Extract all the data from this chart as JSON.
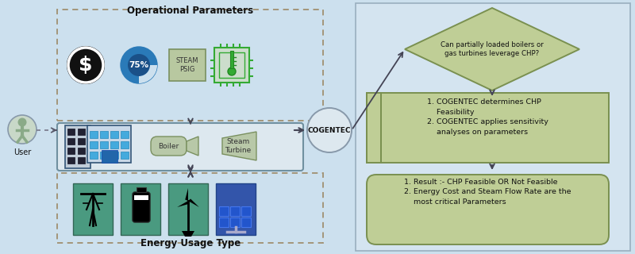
{
  "bg_color": "#cce0ee",
  "op_params_label": "Operational Parameters",
  "energy_usage_label": "Energy Usage Type",
  "user_label": "User",
  "cogentec_label": "COGENTEC",
  "diamond_text": "Can partially loaded boilers or\ngas turbines leverage CHP?",
  "box1_text": "1. COGENTEC determines CHP\n    Feasibility\n2. COGENTEC applies sensitivity\n    analyses on parameters",
  "box2_text": "1. Result :- CHP Feasible OR Not Feasible\n2. Energy Cost and Steam Flow Rate are the\n    most critical Parameters",
  "boiler_label": "Boiler",
  "steam_turbine_label": "Steam\nTurbine",
  "dashed_box_color": "#a09070",
  "right_panel_border": "#9aafbf",
  "green_fill": "#bfce96",
  "green_edge": "#7a9050",
  "main_box_fill": "#dde8ef",
  "main_box_edge": "#7090a0",
  "circle_fill": "#dde8ef",
  "circle_edge": "#8899aa",
  "arrow_color": "#444455",
  "user_circle_fill": "#c8d8c8",
  "user_circle_edge": "#8899aa",
  "building_fill": "#c8d8e8",
  "building_edge": "#4466aa",
  "window_fill": "#44aadd",
  "door_fill": "#2255aa",
  "boiler_fill": "#b8c8a8",
  "steam_fill": "#b8c8a8",
  "dollar_circle_fill": "#111111",
  "pct_outer_fill": "#2a7ab8",
  "pct_inner_fill": "#1a5088",
  "steam_psig_fill": "#b8c8a0",
  "steam_psig_edge": "#7a9060",
  "chip_fill": "#cceecc",
  "chip_edge": "#33aa33",
  "teal": "#4a9a80",
  "blue_panel": "#4466aa",
  "icon_bg": "#4a9a80"
}
